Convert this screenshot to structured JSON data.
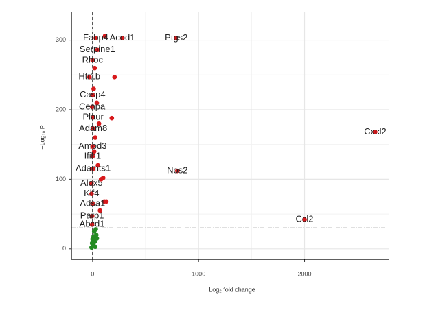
{
  "chart_data": {
    "type": "scatter",
    "x_label": "Log₂ fold change",
    "y_label": "−Log₁₀ P",
    "xlim": [
      -200,
      2800
    ],
    "ylim": [
      -15,
      340
    ],
    "xticks": [
      0,
      1000,
      2000
    ],
    "yticks": [
      0,
      100,
      200,
      300
    ],
    "grid": true,
    "vline": 0,
    "hline": 30,
    "series": [
      {
        "color": "#d7191c",
        "x": [
          30,
          280,
          790,
          45,
          0,
          -30,
          0,
          -5,
          5,
          5,
          2667,
          0,
          0,
          5,
          800,
          -10,
          -10,
          0,
          -5,
          2000,
          -5,
          117,
          207,
          181,
          60,
          130,
          110,
          80,
          20,
          10,
          40,
          25,
          15,
          50,
          100,
          70
        ],
        "y": [
          303,
          303,
          303,
          286,
          271,
          247,
          221,
          204,
          189,
          173,
          168,
          147,
          133,
          115,
          112,
          94,
          79,
          65,
          47,
          42,
          35,
          306,
          247,
          188,
          180,
          68,
          68,
          100,
          260,
          230,
          210,
          160,
          140,
          120,
          102,
          55
        ],
        "point_labels": [
          "Fabp4",
          "Acod1",
          "Ptgs2",
          "Serpine1",
          "Rhoc",
          "Htr1b",
          "Casp4",
          "Cenpa",
          "Plaur",
          "Adam8",
          "Cxcl2",
          "Amod3",
          "Ifih1",
          "Adamts1",
          "Nos2",
          "Alox5",
          "Klf4",
          "Adsa1",
          "Parp1",
          "Ccl2",
          "Abcd1",
          null,
          null,
          null,
          null,
          null,
          null,
          null,
          null,
          null,
          null,
          null,
          null,
          null,
          null,
          null
        ]
      },
      {
        "color": "#238b22",
        "x": [
          -10,
          5,
          20,
          35,
          0,
          15,
          -5,
          30,
          10,
          40,
          25
        ],
        "y": [
          2,
          5,
          10,
          20,
          14,
          25,
          8,
          28,
          18,
          15,
          3
        ],
        "point_labels": [
          null,
          null,
          null,
          null,
          null,
          null,
          null,
          null,
          null,
          null,
          null
        ]
      }
    ]
  }
}
